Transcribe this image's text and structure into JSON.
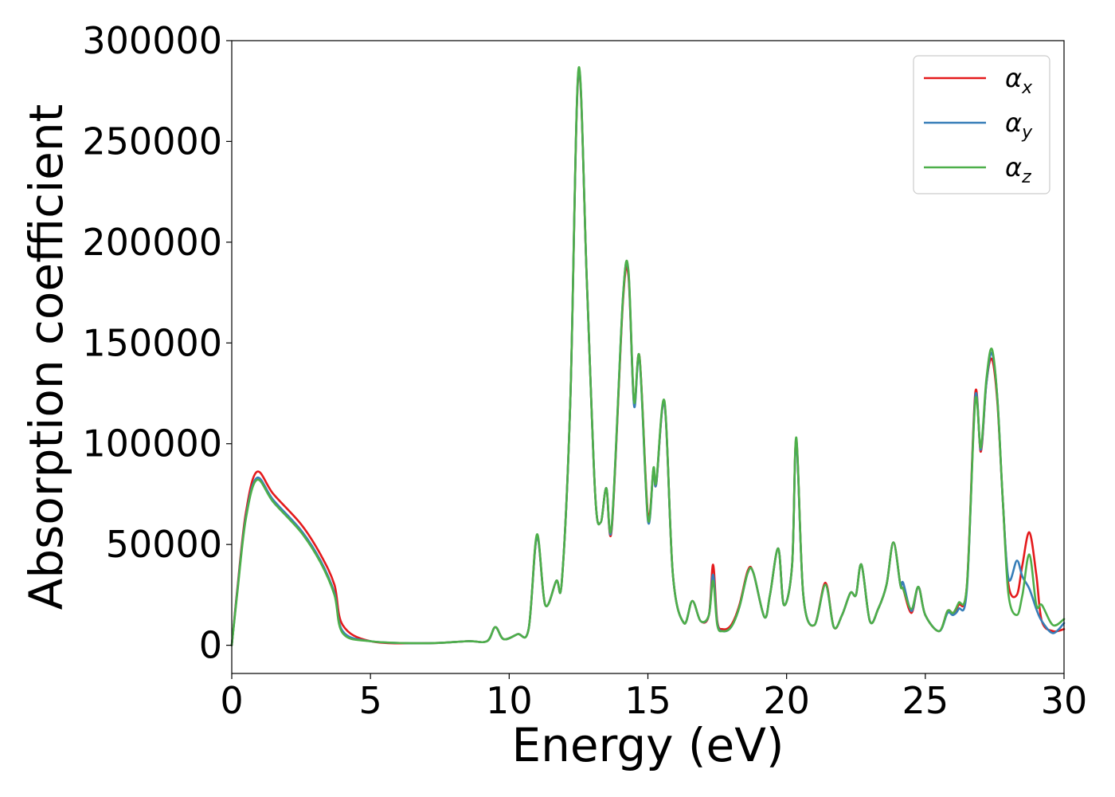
{
  "chart_data": {
    "type": "line",
    "title": "",
    "xlabel": "Energy (eV)",
    "ylabel": "Absorption coefficient",
    "xlim": [
      0,
      30
    ],
    "ylim": [
      -14000,
      300000
    ],
    "xticks": [
      0,
      5,
      10,
      15,
      20,
      25,
      30
    ],
    "yticks": [
      0,
      50000,
      100000,
      150000,
      200000,
      250000,
      300000
    ],
    "xtick_labels": [
      "0",
      "5",
      "10",
      "15",
      "20",
      "25",
      "30"
    ],
    "ytick_labels": [
      "0",
      "50000",
      "100000",
      "150000",
      "200000",
      "250000",
      "300000"
    ],
    "grid": false,
    "legend_position": "top-right",
    "series": [
      {
        "name": "αx",
        "symbol": "α",
        "subscript": "x",
        "color": "#e41a1c",
        "x": [
          0,
          0.2,
          0.5,
          0.9,
          1.5,
          2.5,
          3.2,
          3.7,
          4.0,
          5,
          7,
          8.5,
          9.2,
          9.5,
          9.8,
          10.3,
          10.7,
          11.0,
          11.3,
          11.7,
          11.9,
          12.2,
          12.5,
          12.8,
          13.1,
          13.3,
          13.5,
          13.7,
          14.1,
          14.3,
          14.5,
          14.7,
          15.0,
          15.2,
          15.3,
          15.6,
          15.9,
          16.3,
          16.6,
          16.9,
          17.2,
          17.35,
          17.5,
          17.7,
          18.0,
          18.3,
          18.6,
          18.8,
          19.2,
          19.4,
          19.7,
          19.9,
          20.2,
          20.35,
          20.6,
          21.0,
          21.4,
          21.7,
          22.0,
          22.3,
          22.5,
          22.7,
          23.0,
          23.3,
          23.6,
          23.85,
          24.1,
          24.2,
          24.5,
          24.75,
          25.0,
          25.5,
          25.8,
          26.0,
          26.2,
          26.5,
          26.8,
          27.0,
          27.2,
          27.4,
          27.6,
          27.8,
          28.0,
          28.3,
          28.5,
          28.75,
          29.0,
          29.2,
          29.6,
          30.0
        ],
        "y": [
          0,
          28000,
          65000,
          86000,
          75000,
          60000,
          45000,
          30000,
          10000,
          2000,
          1000,
          2000,
          2000,
          9000,
          3000,
          5500,
          8000,
          54000,
          20000,
          32000,
          32000,
          120000,
          284000,
          180000,
          75000,
          61000,
          78000,
          58000,
          170000,
          183000,
          120000,
          143000,
          65000,
          87000,
          80000,
          120000,
          35000,
          11000,
          22000,
          12000,
          15000,
          40000,
          12000,
          8000,
          10000,
          20000,
          37000,
          36000,
          14000,
          25000,
          48000,
          20000,
          40000,
          102000,
          25000,
          10000,
          31000,
          9000,
          15000,
          26000,
          25000,
          40000,
          12000,
          18000,
          30000,
          51000,
          30000,
          28000,
          16000,
          29000,
          15000,
          7000,
          17000,
          16000,
          20000,
          30000,
          125000,
          96000,
          130000,
          142000,
          120000,
          70000,
          30000,
          25000,
          40000,
          56000,
          35000,
          12000,
          7000,
          8000
        ]
      },
      {
        "name": "αy",
        "symbol": "α",
        "subscript": "y",
        "color": "#377eb8",
        "x": [
          0,
          0.2,
          0.5,
          0.9,
          1.5,
          2.5,
          3.2,
          3.7,
          4.0,
          5,
          7,
          8.5,
          9.2,
          9.5,
          9.8,
          10.3,
          10.7,
          11.0,
          11.3,
          11.7,
          11.9,
          12.2,
          12.5,
          12.8,
          13.1,
          13.3,
          13.5,
          13.7,
          14.1,
          14.3,
          14.5,
          14.7,
          15.0,
          15.2,
          15.3,
          15.6,
          15.9,
          16.3,
          16.6,
          16.9,
          17.2,
          17.35,
          17.5,
          17.7,
          18.0,
          18.3,
          18.6,
          18.8,
          19.2,
          19.4,
          19.7,
          19.9,
          20.2,
          20.35,
          20.6,
          21.0,
          21.4,
          21.7,
          22.0,
          22.3,
          22.5,
          22.7,
          23.0,
          23.3,
          23.6,
          23.85,
          24.1,
          24.2,
          24.5,
          24.75,
          25.0,
          25.5,
          25.8,
          26.0,
          26.2,
          26.5,
          26.8,
          27.0,
          27.2,
          27.4,
          27.6,
          27.8,
          28.0,
          28.3,
          28.5,
          28.75,
          29.0,
          29.2,
          29.6,
          30.0
        ],
        "y": [
          0,
          27000,
          63000,
          83000,
          72000,
          57000,
          42000,
          26000,
          7000,
          2000,
          1000,
          2000,
          2000,
          9000,
          3000,
          5500,
          8000,
          54000,
          20000,
          32000,
          32000,
          120000,
          285000,
          180000,
          75000,
          61000,
          78000,
          59000,
          172000,
          185000,
          119000,
          142000,
          62000,
          87000,
          80000,
          120000,
          35000,
          11000,
          22000,
          12000,
          15000,
          35000,
          11000,
          7000,
          9000,
          19000,
          36000,
          36000,
          14000,
          25000,
          48000,
          20000,
          40000,
          101000,
          25000,
          10000,
          30000,
          9000,
          15000,
          26000,
          25000,
          40000,
          12000,
          18000,
          30000,
          51000,
          30000,
          31000,
          17000,
          29000,
          15000,
          7000,
          16000,
          15000,
          18000,
          28000,
          123000,
          97000,
          130000,
          145000,
          122000,
          70000,
          33000,
          42000,
          34000,
          28000,
          18000,
          12000,
          6000,
          11000
        ]
      },
      {
        "name": "αz",
        "symbol": "α",
        "subscript": "z",
        "color": "#4daf4a",
        "x": [
          0,
          0.2,
          0.5,
          0.9,
          1.5,
          2.5,
          3.2,
          3.7,
          4.0,
          5,
          7,
          8.5,
          9.2,
          9.5,
          9.8,
          10.3,
          10.7,
          11.0,
          11.3,
          11.7,
          11.9,
          12.2,
          12.5,
          12.8,
          13.1,
          13.3,
          13.5,
          13.7,
          14.1,
          14.3,
          14.5,
          14.7,
          15.0,
          15.2,
          15.3,
          15.6,
          15.9,
          16.3,
          16.6,
          16.9,
          17.2,
          17.35,
          17.5,
          17.7,
          18.0,
          18.3,
          18.6,
          18.8,
          19.2,
          19.4,
          19.7,
          19.9,
          20.2,
          20.35,
          20.6,
          21.0,
          21.4,
          21.7,
          22.0,
          22.3,
          22.5,
          22.7,
          23.0,
          23.3,
          23.6,
          23.85,
          24.1,
          24.2,
          24.5,
          24.75,
          25.0,
          25.5,
          25.8,
          26.0,
          26.2,
          26.5,
          26.8,
          27.0,
          27.2,
          27.4,
          27.6,
          27.8,
          28.0,
          28.3,
          28.5,
          28.75,
          29.0,
          29.2,
          29.6,
          30.0
        ],
        "y": [
          0,
          26000,
          62000,
          82000,
          71000,
          56000,
          41000,
          25000,
          6000,
          2000,
          1000,
          2000,
          2000,
          9000,
          3000,
          5500,
          8000,
          55000,
          20000,
          32000,
          32000,
          120000,
          286000,
          180000,
          75000,
          61000,
          78000,
          60000,
          172000,
          186000,
          121000,
          143000,
          63000,
          88000,
          81000,
          121000,
          35000,
          11000,
          22000,
          12000,
          15000,
          32000,
          10000,
          7000,
          9000,
          19000,
          36000,
          36000,
          14000,
          25000,
          48000,
          20000,
          40000,
          103000,
          25000,
          10000,
          30000,
          9000,
          15000,
          26000,
          25000,
          40000,
          12000,
          18000,
          30000,
          51000,
          30000,
          28000,
          18000,
          29000,
          15000,
          7000,
          17000,
          16000,
          21000,
          30000,
          121000,
          98000,
          132000,
          147000,
          122000,
          70000,
          25000,
          15000,
          25000,
          45000,
          20000,
          20000,
          10000,
          13000
        ]
      }
    ]
  }
}
